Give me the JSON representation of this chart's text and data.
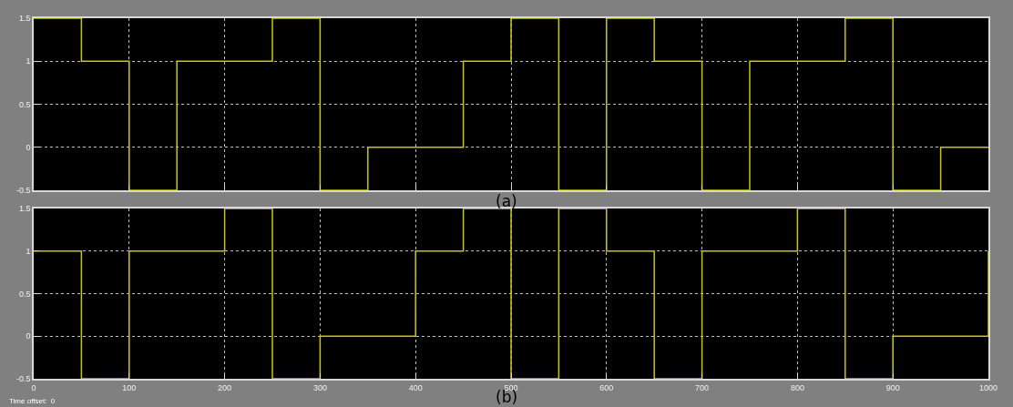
{
  "chart_data": [
    {
      "type": "step",
      "title": "(a)",
      "x": [
        0,
        50,
        100,
        150,
        200,
        250,
        300,
        350,
        400,
        450,
        500,
        550,
        600,
        650,
        700,
        750,
        800,
        850,
        900,
        950,
        1000
      ],
      "values": [
        1.5,
        1,
        -0.5,
        1,
        1,
        1.5,
        -0.5,
        0,
        0,
        1,
        1.5,
        -0.5,
        1.5,
        1,
        -0.5,
        1,
        1,
        1.5,
        -0.5,
        0,
        0
      ],
      "color": "#c8c800",
      "xlim": [
        0,
        1000
      ],
      "ylim": [
        -0.5,
        1.5
      ],
      "xticks": [
        0,
        100,
        200,
        300,
        400,
        500,
        600,
        700,
        800,
        900,
        1000
      ],
      "yticks": [
        -0.5,
        0,
        0.5,
        1,
        1.5
      ],
      "grid": true,
      "tick_labels": "y"
    },
    {
      "type": "step",
      "title": "(b)",
      "annotations": [
        "Time offset:  0"
      ],
      "x": [
        0,
        50,
        100,
        150,
        200,
        250,
        300,
        350,
        400,
        450,
        500,
        550,
        600,
        650,
        700,
        750,
        800,
        850,
        900,
        950,
        1000
      ],
      "values": [
        1,
        -0.5,
        1,
        1,
        1.5,
        -0.5,
        0,
        0,
        1,
        1.5,
        -0.5,
        1.5,
        1,
        -0.5,
        1,
        1,
        1.5,
        -0.5,
        0,
        0,
        1
      ],
      "color": "#c8c800",
      "xlim": [
        0,
        1000
      ],
      "ylim": [
        -0.5,
        1.5
      ],
      "xticks": [
        0,
        100,
        200,
        300,
        400,
        500,
        600,
        700,
        800,
        900,
        1000
      ],
      "yticks": [
        -0.5,
        0,
        0.5,
        1,
        1.5
      ],
      "grid": true
    }
  ]
}
